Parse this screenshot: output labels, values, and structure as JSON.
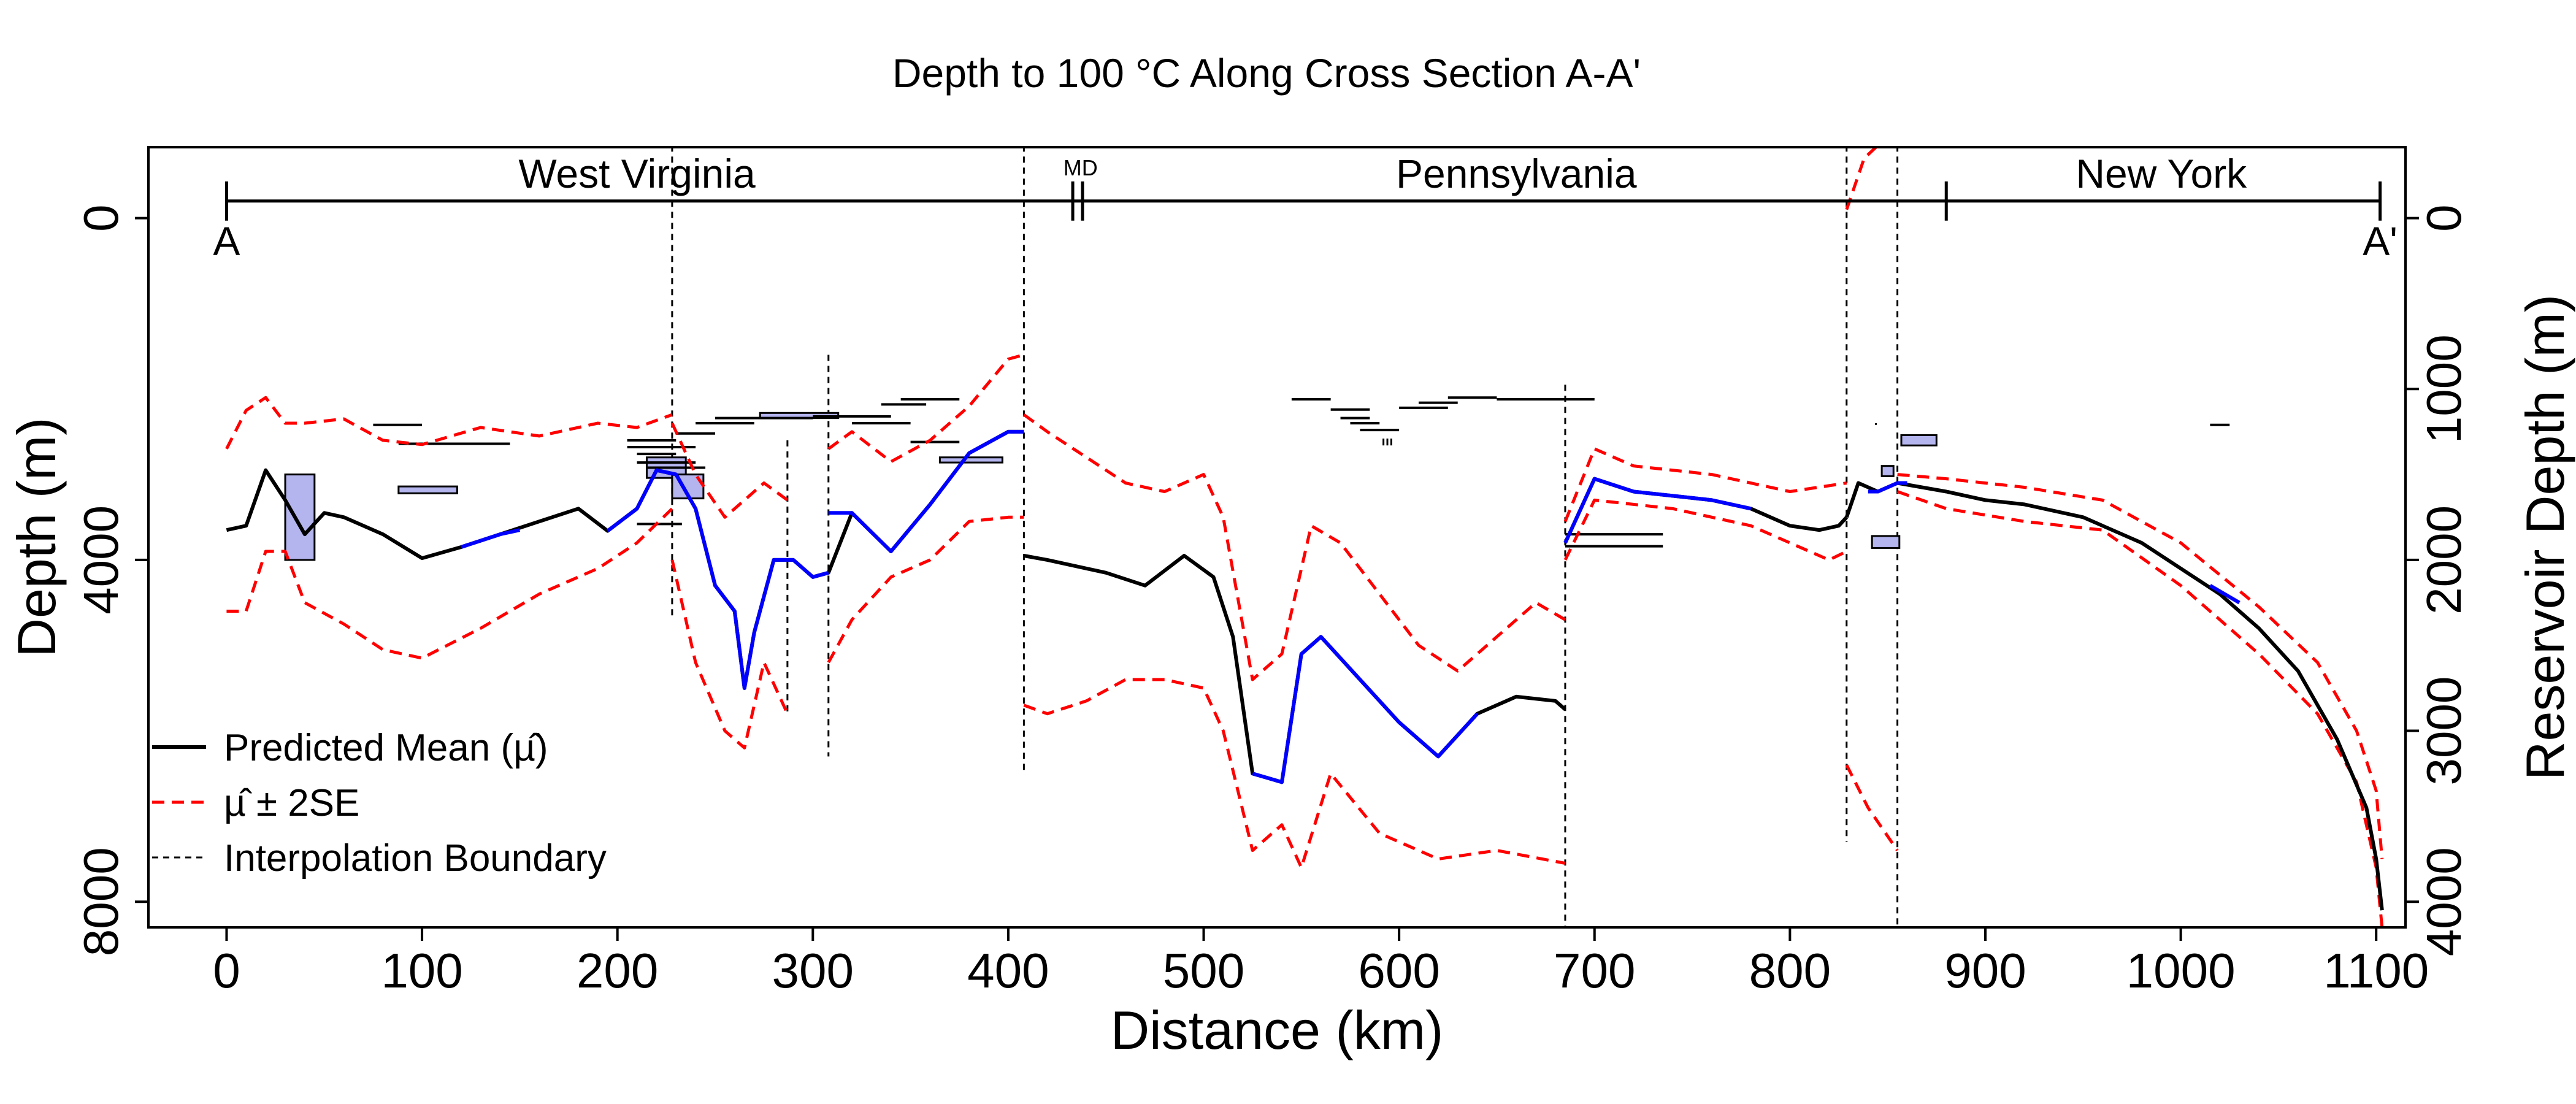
{
  "chart_data": {
    "type": "line",
    "title": "Depth to 100 °C Along Cross Section A-A'",
    "xlabel": "Distance (km)",
    "ylabel": "Depth (m)",
    "y2label": "Reservoir Depth (m)",
    "xlim": [
      -40,
      1115
    ],
    "ylim": [
      8300,
      -830
    ],
    "y2lim": [
      4150,
      -415
    ],
    "xticks": [
      0,
      100,
      200,
      300,
      400,
      500,
      600,
      700,
      800,
      900,
      1000,
      1100
    ],
    "yticks_left": [
      0,
      4000,
      8000
    ],
    "yticks_right": [
      0,
      1000,
      2000,
      3000,
      4000
    ],
    "section_labels": {
      "start": "A",
      "end": "A'"
    },
    "states": [
      {
        "name": "West Virginia",
        "x": 210,
        "short": false
      },
      {
        "name": "MD",
        "x": 437,
        "short": true
      },
      {
        "name": "Pennsylvania",
        "x": 660,
        "short": false
      },
      {
        "name": "New York",
        "x": 990,
        "short": false
      }
    ],
    "state_ticks": [
      0,
      433,
      438,
      880,
      1102
    ],
    "boundaries": [
      {
        "x": 228,
        "y0": -850,
        "y1": 4700
      },
      {
        "x": 287,
        "y0": 2600,
        "y1": 5800
      },
      {
        "x": 308,
        "y0": 1600,
        "y1": 6300
      },
      {
        "x": 408,
        "y0": -850,
        "y1": 6500
      },
      {
        "x": 685,
        "y0": 1950,
        "y1": 8300
      },
      {
        "x": 829,
        "y0": -850,
        "y1": 7300
      },
      {
        "x": 855,
        "y0": -850,
        "y1": 8300
      }
    ],
    "series": [
      {
        "name": "Predicted Mean (µ̂)",
        "color": "#000000",
        "segments": [
          {
            "x": [
              0,
              10,
              20,
              30,
              40,
              50,
              60,
              80,
              100,
              120,
              140,
              160,
              180,
              195,
              210,
              220,
              230,
              240,
              250,
              260,
              265,
              270,
              280,
              290,
              300,
              308,
              320,
              340,
              360,
              380,
              400,
              408
            ],
            "y": [
              3650,
              3600,
              2950,
              3300,
              3700,
              3450,
              3500,
              3700,
              3980,
              3850,
              3700,
              3550,
              3400,
              3660,
              3400,
              2950,
              3000,
              3400,
              4300,
              4600,
              5500,
              4850,
              4000,
              4000,
              4200,
              4150,
              3450,
              3900,
              3350,
              2750,
              2500,
              2500
            ]
          },
          {
            "x": [
              408,
              420,
              450,
              470,
              490,
              505,
              515,
              525,
              540,
              550,
              560,
              580,
              600,
              620,
              640,
              660,
              680,
              685
            ],
            "y": [
              3950,
              4000,
              4150,
              4300,
              3950,
              4200,
              4900,
              6500,
              6600,
              5100,
              4900,
              5400,
              5900,
              6300,
              5800,
              5600,
              5650,
              5750
            ]
          },
          {
            "x": [
              685,
              700,
              720,
              740,
              760,
              780,
              800,
              815,
              825,
              829
            ],
            "y": [
              3800,
              3050,
              3200,
              3250,
              3300,
              3400,
              3600,
              3650,
              3600,
              3500
            ]
          },
          {
            "x": [
              829,
              835,
              845,
              855,
              880,
              900,
              920,
              950,
              980,
              1000,
              1020,
              1040,
              1060,
              1080,
              1095,
              1100,
              1103
            ],
            "y": [
              3500,
              3100,
              3200,
              3100,
              3200,
              3300,
              3350,
              3500,
              3800,
              4100,
              4400,
              4800,
              5300,
              6100,
              6900,
              7500,
              8100
            ]
          }
        ]
      },
      {
        "name": "µ̂ ± 2SE",
        "color": "#ff0000",
        "dash": true,
        "segments": [
          {
            "x": [
              0,
              10,
              20,
              30,
              40,
              60,
              80,
              100,
              130,
              160,
              190,
              210,
              228
            ],
            "y": [
              2700,
              2250,
              2100,
              2400,
              2400,
              2350,
              2600,
              2650,
              2450,
              2550,
              2400,
              2450,
              2300
            ]
          },
          {
            "x": [
              0,
              10,
              20,
              30,
              40,
              60,
              80,
              100,
              130,
              160,
              190,
              210,
              228
            ],
            "y": [
              4600,
              4600,
              3900,
              3900,
              4500,
              4750,
              5050,
              5150,
              4800,
              4400,
              4100,
              3800,
              3400
            ]
          },
          {
            "x": [
              228,
              240,
              255,
              265,
              275,
              287
            ],
            "y": [
              2400,
              3000,
              3500,
              3300,
              3100,
              3300
            ]
          },
          {
            "x": [
              228,
              240,
              255,
              265,
              275,
              287
            ],
            "y": [
              4000,
              5200,
              6000,
              6200,
              5200,
              5800
            ]
          },
          {
            "x": [
              308,
              320,
              340,
              360,
              380,
              400,
              408
            ],
            "y": [
              2700,
              2500,
              2850,
              2600,
              2200,
              1650,
              1600
            ]
          },
          {
            "x": [
              308,
              320,
              340,
              360,
              380,
              400,
              408
            ],
            "y": [
              5200,
              4700,
              4200,
              4000,
              3550,
              3500,
              3500
            ]
          },
          {
            "x": [
              408,
              420,
              440,
              460,
              480,
              500,
              510,
              525,
              540,
              555,
              570,
              590,
              610,
              630,
              650,
              670,
              685
            ],
            "y": [
              2300,
              2500,
              2800,
              3100,
              3200,
              3000,
              3500,
              5400,
              5100,
              3600,
              3800,
              4400,
              5000,
              5300,
              4900,
              4500,
              4700
            ]
          },
          {
            "x": [
              408,
              420,
              440,
              460,
              480,
              500,
              510,
              525,
              540,
              550,
              565,
              590,
              620,
              650,
              685
            ],
            "y": [
              5700,
              5800,
              5650,
              5400,
              5400,
              5500,
              6000,
              7400,
              7100,
              7600,
              6500,
              7200,
              7500,
              7400,
              7550
            ]
          },
          {
            "x": [
              685,
              700,
              720,
              760,
              800,
              829
            ],
            "y": [
              3550,
              2700,
              2900,
              3000,
              3200,
              3100
            ]
          },
          {
            "x": [
              685,
              700,
              740,
              780,
              820,
              829
            ],
            "y": [
              4000,
              3300,
              3400,
              3600,
              4000,
              3900
            ]
          },
          {
            "x": [
              829,
              838,
              845
            ],
            "y": [
              -100,
              -700,
              -850
            ]
          },
          {
            "x": [
              829,
              840,
              855
            ],
            "y": [
              6400,
              6900,
              7400
            ]
          },
          {
            "x": [
              855,
              880,
              920,
              960,
              1000,
              1040,
              1070,
              1090,
              1100,
              1103
            ],
            "y": [
              3000,
              3050,
              3150,
              3300,
              3800,
              4550,
              5200,
              6000,
              6700,
              7500
            ]
          },
          {
            "x": [
              855,
              880,
              920,
              960,
              1000,
              1040,
              1070,
              1090,
              1100,
              1103
            ],
            "y": [
              3200,
              3400,
              3550,
              3650,
              4300,
              5100,
              5800,
              6600,
              7600,
              8300
            ]
          }
        ]
      },
      {
        "name": "",
        "color": "#0000ff",
        "segments": [
          {
            "x": [
              120,
              140,
              150
            ],
            "y": [
              3850,
              3700,
              3650
            ]
          },
          {
            "x": [
              195,
              210,
              220,
              230,
              240,
              250,
              260,
              265,
              270,
              280,
              290,
              300,
              308
            ],
            "y": [
              3660,
              3400,
              2950,
              3000,
              3400,
              4300,
              4600,
              5500,
              4850,
              4000,
              4000,
              4200,
              4150
            ]
          },
          {
            "x": [
              308,
              320,
              340,
              360,
              380,
              400,
              408
            ],
            "y": [
              3450,
              3450,
              3900,
              3350,
              2750,
              2500,
              2500
            ]
          },
          {
            "x": [
              525,
              540,
              550,
              560,
              580,
              600,
              620,
              640
            ],
            "y": [
              6500,
              6600,
              5100,
              4900,
              5400,
              5900,
              6300,
              5800
            ]
          },
          {
            "x": [
              685,
              700,
              720,
              740,
              760,
              780
            ],
            "y": [
              3800,
              3050,
              3200,
              3250,
              3300,
              3400
            ]
          },
          {
            "x": [
              840,
              845,
              855,
              860
            ],
            "y": [
              3200,
              3200,
              3100,
              3100
            ]
          },
          {
            "x": [
              1015,
              1030
            ],
            "y": [
              4300,
              4500
            ]
          }
        ]
      }
    ],
    "reservoir_boxes": [
      {
        "x0": 30,
        "x1": 45,
        "y0": 1500,
        "y1": 2000
      },
      {
        "x0": 88,
        "x1": 118,
        "y0": 1570,
        "y1": 1610
      },
      {
        "x0": 215,
        "x1": 235,
        "y0": 1400,
        "y1": 1520
      },
      {
        "x0": 228,
        "x1": 244,
        "y0": 1500,
        "y1": 1640
      },
      {
        "x0": 365,
        "x1": 397,
        "y0": 1400,
        "y1": 1430
      },
      {
        "x0": 273,
        "x1": 313,
        "y0": 1140,
        "y1": 1170
      },
      {
        "x0": 842,
        "x1": 856,
        "y0": 1860,
        "y1": 1930
      },
      {
        "x0": 847,
        "x1": 853,
        "y0": 1450,
        "y1": 1510
      },
      {
        "x0": 857,
        "x1": 875,
        "y0": 1270,
        "y1": 1330
      }
    ],
    "reservoir_lines": [
      {
        "x0": 75,
        "x1": 100,
        "y": 1210
      },
      {
        "x0": 88,
        "x1": 145,
        "y": 1320
      },
      {
        "x0": 205,
        "x1": 230,
        "y": 1300
      },
      {
        "x0": 205,
        "x1": 240,
        "y": 1340
      },
      {
        "x0": 210,
        "x1": 230,
        "y": 1380
      },
      {
        "x0": 210,
        "x1": 240,
        "y": 1430
      },
      {
        "x0": 215,
        "x1": 245,
        "y": 1460
      },
      {
        "x0": 210,
        "x1": 233,
        "y": 1790
      },
      {
        "x0": 230,
        "x1": 250,
        "y": 1260
      },
      {
        "x0": 240,
        "x1": 270,
        "y": 1200
      },
      {
        "x0": 250,
        "x1": 300,
        "y": 1170
      },
      {
        "x0": 300,
        "x1": 340,
        "y": 1160
      },
      {
        "x0": 320,
        "x1": 350,
        "y": 1200
      },
      {
        "x0": 335,
        "x1": 358,
        "y": 1090
      },
      {
        "x0": 345,
        "x1": 375,
        "y": 1060
      },
      {
        "x0": 350,
        "x1": 375,
        "y": 1310
      },
      {
        "x0": 545,
        "x1": 565,
        "y": 1060
      },
      {
        "x0": 565,
        "x1": 585,
        "y": 1120
      },
      {
        "x0": 570,
        "x1": 585,
        "y": 1170
      },
      {
        "x0": 575,
        "x1": 590,
        "y": 1200
      },
      {
        "x0": 580,
        "x1": 600,
        "y": 1240
      },
      {
        "x0": 600,
        "x1": 625,
        "y": 1110
      },
      {
        "x0": 610,
        "x1": 630,
        "y": 1080
      },
      {
        "x0": 625,
        "x1": 650,
        "y": 1050
      },
      {
        "x0": 650,
        "x1": 700,
        "y": 1060
      },
      {
        "x0": 685,
        "x1": 735,
        "y": 1850
      },
      {
        "x0": 685,
        "x1": 735,
        "y": 1920
      },
      {
        "x0": 1015,
        "x1": 1025,
        "y": 1210
      }
    ],
    "reservoir_ticks": [
      {
        "x": 592,
        "y0": 1290,
        "y1": 1330
      },
      {
        "x": 594,
        "y0": 1290,
        "y1": 1330
      },
      {
        "x": 596,
        "y0": 1290,
        "y1": 1330
      },
      {
        "x": 844,
        "y0": 1200,
        "y1": 1210
      }
    ],
    "legend": {
      "position": "bottom-left",
      "items": [
        {
          "label": "Predicted Mean (µ̂)",
          "style": "solid-black"
        },
        {
          "label": "µ̂ ± 2SE",
          "style": "dashed-red"
        },
        {
          "label": "Interpolation Boundary",
          "style": "dashed-black"
        }
      ]
    },
    "colors": {
      "mean": "#000000",
      "interval": "#ff0000",
      "highlight": "#0000ff",
      "box_fill": "#b4b4ee"
    }
  }
}
